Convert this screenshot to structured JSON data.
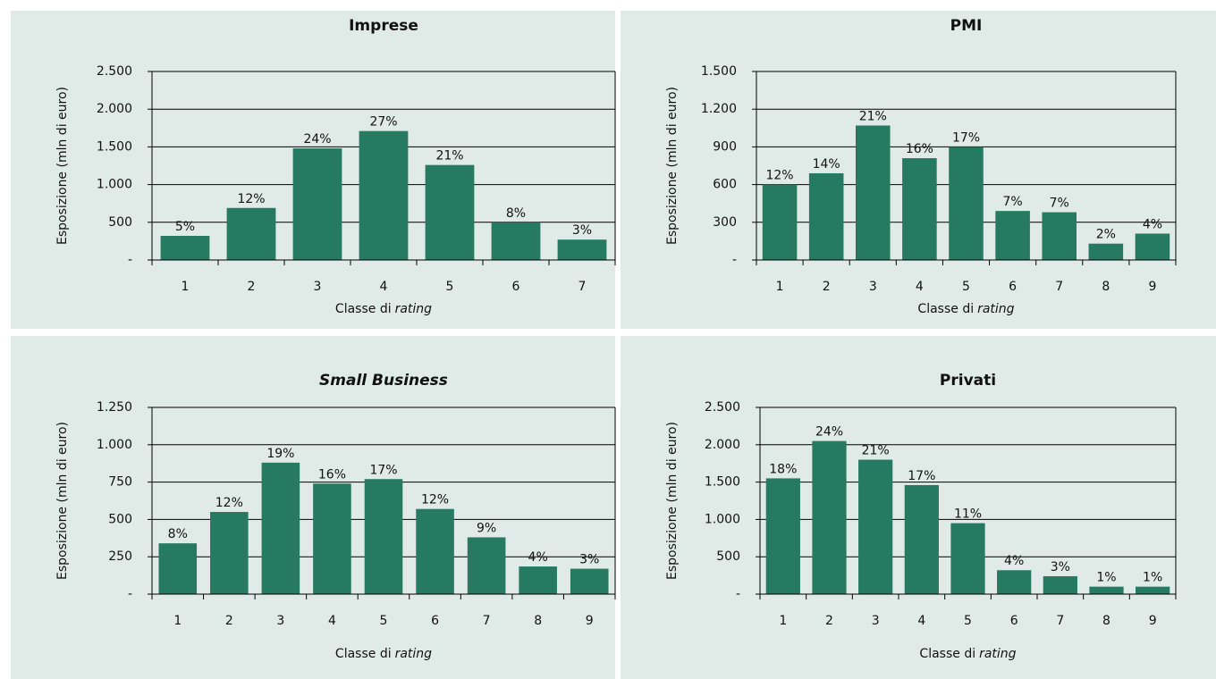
{
  "chart_data": [
    {
      "type": "bar",
      "title": "Imprese",
      "title_italic": false,
      "ylabel": "Esposizione (mln di euro)",
      "xlabel": {
        "text": "Classe di",
        "emphasis": "rating"
      },
      "categories": [
        "1",
        "2",
        "3",
        "4",
        "5",
        "6",
        "7"
      ],
      "values": [
        320,
        690,
        1480,
        1710,
        1260,
        500,
        270
      ],
      "percent_labels": [
        "5%",
        "12%",
        "24%",
        "27%",
        "21%",
        "8%",
        "3%"
      ],
      "color": "#267a62",
      "ylim": [
        0,
        2500
      ],
      "yticks": [
        {
          "value": 0,
          "label": "-"
        },
        500,
        {
          "value": 1000,
          "label": "1.000"
        },
        {
          "value": 1500,
          "label": "1.500"
        },
        {
          "value": 2000,
          "label": "2.000"
        },
        {
          "value": 2500,
          "label": "2.500"
        }
      ],
      "grid": true
    },
    {
      "type": "bar",
      "title": "PMI",
      "title_italic": false,
      "ylabel": "Esposizione (mln di euro)",
      "xlabel": {
        "text": "Classe di",
        "emphasis": "rating"
      },
      "categories": [
        "1",
        "2",
        "3",
        "4",
        "5",
        "6",
        "7",
        "8",
        "9"
      ],
      "values": [
        600,
        690,
        1070,
        810,
        900,
        390,
        380,
        130,
        210
      ],
      "percent_labels": [
        "12%",
        "14%",
        "21%",
        "16%",
        "17%",
        "7%",
        "7%",
        "2%",
        "4%"
      ],
      "color": "#267a62",
      "ylim": [
        0,
        1500
      ],
      "yticks": [
        {
          "value": 0,
          "label": "-"
        },
        300,
        600,
        900,
        {
          "value": 1200,
          "label": "1.200"
        },
        {
          "value": 1500,
          "label": "1.500"
        }
      ],
      "grid": true
    },
    {
      "type": "bar",
      "title": "Small Business",
      "title_italic": true,
      "ylabel": "Esposizione (mln di euro)",
      "xlabel": {
        "text": "Classe di",
        "emphasis": "rating"
      },
      "categories": [
        "1",
        "2",
        "3",
        "4",
        "5",
        "6",
        "7",
        "8",
        "9"
      ],
      "values": [
        340,
        550,
        880,
        740,
        770,
        570,
        380,
        185,
        170
      ],
      "percent_labels": [
        "8%",
        "12%",
        "19%",
        "16%",
        "17%",
        "12%",
        "9%",
        "4%",
        "3%"
      ],
      "color": "#267a62",
      "ylim": [
        0,
        1250
      ],
      "yticks": [
        {
          "value": 0,
          "label": "-"
        },
        250,
        500,
        750,
        {
          "value": 1000,
          "label": "1.000"
        },
        {
          "value": 1250,
          "label": "1.250"
        }
      ],
      "grid": true
    },
    {
      "type": "bar",
      "title": "Privati",
      "title_italic": false,
      "ylabel": "Esposizione (mln di euro)",
      "xlabel": {
        "text": "Classe di",
        "emphasis": "rating"
      },
      "categories": [
        "1",
        "2",
        "3",
        "4",
        "5",
        "6",
        "7",
        "8",
        "9"
      ],
      "values": [
        1550,
        2050,
        1800,
        1460,
        950,
        320,
        240,
        100,
        100
      ],
      "percent_labels": [
        "18%",
        "24%",
        "21%",
        "17%",
        "11%",
        "4%",
        "3%",
        "1%",
        "1%"
      ],
      "color": "#267a62",
      "ylim": [
        0,
        2500
      ],
      "yticks": [
        {
          "value": 0,
          "label": "-"
        },
        500,
        {
          "value": 1000,
          "label": "1.000"
        },
        {
          "value": 1500,
          "label": "1.500"
        },
        {
          "value": 2000,
          "label": "2.000"
        },
        {
          "value": 2500,
          "label": "2.500"
        }
      ],
      "grid": true
    }
  ]
}
